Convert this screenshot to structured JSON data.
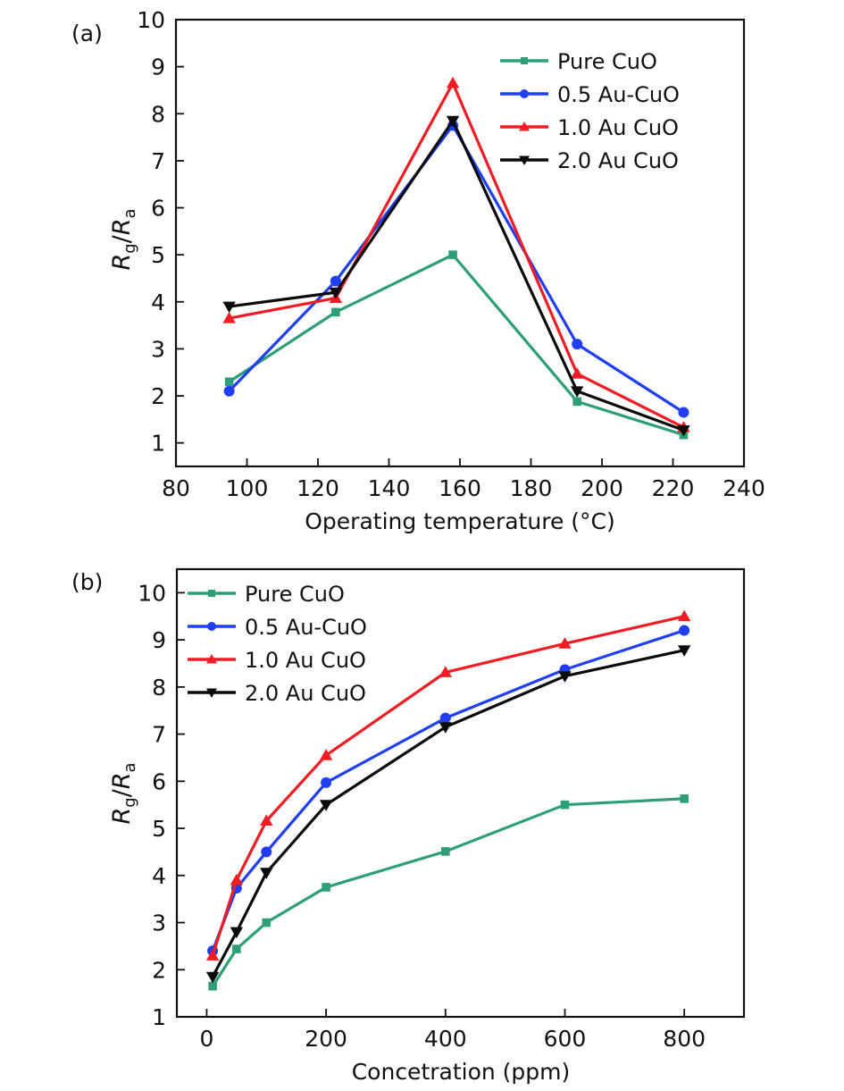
{
  "chart_data": [
    {
      "type": "line",
      "panel_label": "(a)",
      "title": "",
      "xlabel": "Operating temperature (°C)",
      "ylabel_main": "R",
      "ylabel_sub1": "g",
      "ylabel_sep": "/",
      "ylabel_sub2": "a",
      "xlim": [
        80,
        240
      ],
      "ylim": [
        0.5,
        10
      ],
      "xticks": [
        80,
        100,
        120,
        140,
        160,
        180,
        200,
        220,
        240
      ],
      "yticks": [
        1,
        2,
        3,
        4,
        5,
        6,
        7,
        8,
        9,
        10
      ],
      "grid": false,
      "legend_position": "top-right",
      "x": [
        95,
        125,
        158,
        193,
        223
      ],
      "series": [
        {
          "name": "Pure CuO",
          "color": "#2e9e78",
          "marker": "square",
          "values": [
            2.3,
            3.78,
            5.0,
            1.88,
            1.17
          ]
        },
        {
          "name": "0.5 Au-CuO",
          "color": "#1f3ff0",
          "marker": "circle",
          "values": [
            2.1,
            4.44,
            7.75,
            3.1,
            1.65
          ]
        },
        {
          "name": "1.0 Au CuO",
          "color": "#f01c24",
          "marker": "triangle-up",
          "values": [
            3.65,
            4.08,
            8.65,
            2.47,
            1.33
          ]
        },
        {
          "name": "2.0 Au CuO",
          "color": "#0a0a0a",
          "marker": "triangle-down",
          "values": [
            3.9,
            4.2,
            7.85,
            2.1,
            1.27
          ]
        }
      ]
    },
    {
      "type": "line",
      "panel_label": "(b)",
      "title": "",
      "xlabel": "Concetration (ppm)",
      "ylabel_main": "R",
      "ylabel_sub1": "g",
      "ylabel_sep": "/",
      "ylabel_sub2": "a",
      "xlim": [
        -50,
        900
      ],
      "ylim": [
        1,
        10.5
      ],
      "xticks": [
        0,
        200,
        400,
        600,
        800
      ],
      "yticks": [
        1,
        2,
        3,
        4,
        5,
        6,
        7,
        8,
        9,
        10
      ],
      "grid": false,
      "legend_position": "top-left",
      "x": [
        10,
        50,
        100,
        200,
        400,
        600,
        800
      ],
      "series": [
        {
          "name": "Pure CuO",
          "color": "#2e9e78",
          "marker": "square",
          "values": [
            1.65,
            2.44,
            3.0,
            3.75,
            4.51,
            5.5,
            5.63
          ]
        },
        {
          "name": "0.5 Au-CuO",
          "color": "#1f3ff0",
          "marker": "circle",
          "values": [
            2.4,
            3.73,
            4.5,
            5.97,
            7.34,
            8.37,
            9.2
          ]
        },
        {
          "name": "1.0 Au CuO",
          "color": "#f01c24",
          "marker": "triangle-up",
          "values": [
            2.3,
            3.9,
            5.16,
            6.55,
            8.31,
            8.92,
            9.5
          ]
        },
        {
          "name": "2.0 Au CuO",
          "color": "#0a0a0a",
          "marker": "triangle-down",
          "values": [
            1.85,
            2.8,
            4.06,
            5.5,
            7.15,
            8.23,
            8.78
          ]
        }
      ]
    }
  ]
}
